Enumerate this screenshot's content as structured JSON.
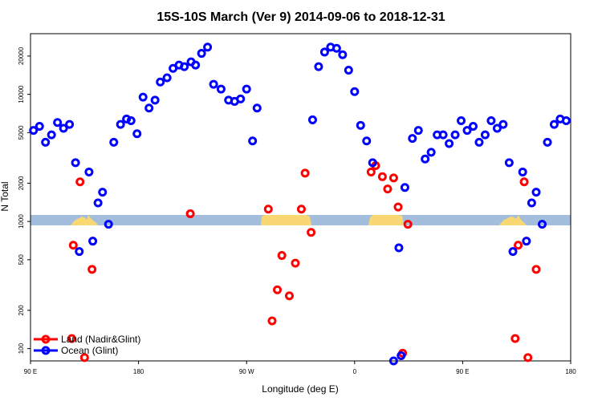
{
  "chart_data": {
    "type": "scatter",
    "title": "15S-10S March (Ver 9)   2014-09-06 to 2018-12-31",
    "xlabel": "Longitude (deg E)",
    "ylabel": "N Total",
    "x_axis": {
      "min": 90,
      "max": 450,
      "ticks": [
        {
          "value": 90,
          "label": "90 E"
        },
        {
          "value": 162,
          "label": "180"
        },
        {
          "value": 234,
          "label": "90 W"
        },
        {
          "value": 306,
          "label": "0"
        },
        {
          "value": 378,
          "label": "90 E"
        },
        {
          "value": 450,
          "label": "180"
        }
      ]
    },
    "y_axis": {
      "scale": "log",
      "min": 80,
      "max": 30000,
      "ticks": [
        {
          "value": 100,
          "label": "100"
        },
        {
          "value": 200,
          "label": "200"
        },
        {
          "value": 500,
          "label": "500"
        },
        {
          "value": 1000,
          "label": "1000"
        },
        {
          "value": 2000,
          "label": "2000"
        },
        {
          "value": 5000,
          "label": "5000"
        },
        {
          "value": 10000,
          "label": "10000"
        },
        {
          "value": 20000,
          "label": "20000"
        }
      ]
    },
    "legend": {
      "position": "bottom-left",
      "items": [
        {
          "label": "Land (Nadir&Glint)",
          "color": "#ff0000"
        },
        {
          "label": "Ocean (Glint)",
          "color": "#0000ff"
        }
      ]
    },
    "series": [
      {
        "name": "Land (Nadir&Glint)",
        "color": "#ff0000",
        "points": [
          [
            117.5,
            120
          ],
          [
            118.5,
            650
          ],
          [
            123,
            2050
          ],
          [
            126,
            85
          ],
          [
            131,
            420
          ],
          [
            196.5,
            1150
          ],
          [
            248.5,
            1250
          ],
          [
            251,
            165
          ],
          [
            254.5,
            290
          ],
          [
            257.5,
            540
          ],
          [
            262.5,
            260
          ],
          [
            266.5,
            470
          ],
          [
            270.5,
            1250
          ],
          [
            273,
            2400
          ],
          [
            277,
            820
          ],
          [
            317,
            2450
          ],
          [
            320,
            2750
          ],
          [
            324.5,
            2250
          ],
          [
            328,
            1800
          ],
          [
            332,
            2200
          ],
          [
            335,
            1300
          ],
          [
            338,
            92
          ],
          [
            341.5,
            950
          ],
          [
            413,
            120
          ],
          [
            415,
            650
          ],
          [
            419,
            2050
          ],
          [
            421.5,
            85
          ],
          [
            427,
            420
          ]
        ]
      },
      {
        "name": "Ocean (Glint)",
        "color": "#0000ff",
        "points": [
          [
            92,
            5200
          ],
          [
            96,
            5600
          ],
          [
            100,
            4200
          ],
          [
            104,
            4800
          ],
          [
            108,
            6000
          ],
          [
            112,
            5400
          ],
          [
            116,
            5800
          ],
          [
            120,
            2900
          ],
          [
            122.5,
            580
          ],
          [
            129,
            2450
          ],
          [
            131.5,
            700
          ],
          [
            135,
            1400
          ],
          [
            138,
            1700
          ],
          [
            142,
            950
          ],
          [
            145.5,
            4200
          ],
          [
            150,
            5800
          ],
          [
            154,
            6400
          ],
          [
            157,
            6200
          ],
          [
            161,
            4900
          ],
          [
            165,
            9500
          ],
          [
            169,
            7800
          ],
          [
            173,
            9000
          ],
          [
            176.5,
            12500
          ],
          [
            181,
            13500
          ],
          [
            185,
            16000
          ],
          [
            189,
            17000
          ],
          [
            192.5,
            16500
          ],
          [
            197,
            18000
          ],
          [
            200,
            17000
          ],
          [
            204,
            21000
          ],
          [
            208,
            23500
          ],
          [
            212,
            12000
          ],
          [
            217,
            11000
          ],
          [
            222,
            9000
          ],
          [
            226,
            8800
          ],
          [
            230,
            9200
          ],
          [
            234,
            11000
          ],
          [
            238,
            4300
          ],
          [
            241,
            7800
          ],
          [
            278,
            6300
          ],
          [
            282,
            16500
          ],
          [
            286,
            21500
          ],
          [
            290,
            23500
          ],
          [
            294,
            23000
          ],
          [
            298,
            20500
          ],
          [
            302,
            15500
          ],
          [
            306,
            10500
          ],
          [
            310,
            5700
          ],
          [
            314,
            4300
          ],
          [
            318,
            2900
          ],
          [
            332,
            80
          ],
          [
            335.5,
            620
          ],
          [
            337,
            88
          ],
          [
            339.5,
            1850
          ],
          [
            344.5,
            4500
          ],
          [
            348.5,
            5200
          ],
          [
            353,
            3100
          ],
          [
            357,
            3500
          ],
          [
            361,
            4800
          ],
          [
            365,
            4800
          ],
          [
            369,
            4100
          ],
          [
            373,
            4800
          ],
          [
            377,
            6200
          ],
          [
            381,
            5200
          ],
          [
            385,
            5600
          ],
          [
            389,
            4200
          ],
          [
            393,
            4800
          ],
          [
            397,
            6200
          ],
          [
            401,
            5400
          ],
          [
            405,
            5800
          ],
          [
            409,
            2900
          ],
          [
            411.5,
            580
          ],
          [
            418,
            2450
          ],
          [
            420.5,
            700
          ],
          [
            424,
            1400
          ],
          [
            427,
            1700
          ],
          [
            431,
            950
          ],
          [
            434.5,
            4200
          ],
          [
            439,
            5800
          ],
          [
            443,
            6400
          ],
          [
            447,
            6200
          ]
        ]
      }
    ]
  }
}
